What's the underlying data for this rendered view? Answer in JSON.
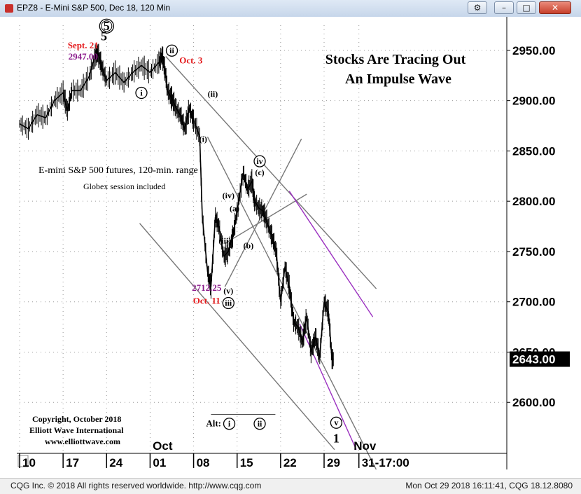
{
  "window": {
    "title": "EPZ8 - E-Mini S&P 500, Dec 18, 120 Min",
    "buttons": [
      "tools-icon",
      "minimize-icon",
      "maximize-icon",
      "close-icon"
    ]
  },
  "status_bar": {
    "left": "CQG Inc. © 2018 All rights reserved worldwide. http://www.cqg.com",
    "right": "Mon Oct 29 2018 16:11:41, CQG 18.12.8080"
  },
  "chart_data": {
    "type": "line",
    "style": "price bars",
    "title": "Stocks Are Tracing Out",
    "subtitle": "An Impulse Wave",
    "note_line1": "E-mini S&P 500 futures, 120-min. range",
    "note_line2": "Globex session included",
    "copyright": [
      "Copyright, October 2018",
      "Elliott Wave International",
      "www.elliottwave.com"
    ],
    "ylim": [
      2550,
      2975
    ],
    "yticks": [
      {
        "value": 2950,
        "label": "2950.00"
      },
      {
        "value": 2900,
        "label": "2900.00"
      },
      {
        "value": 2850,
        "label": "2850.00"
      },
      {
        "value": 2800,
        "label": "2800.00"
      },
      {
        "value": 2750,
        "label": "2750.00"
      },
      {
        "value": 2700,
        "label": "2700.00"
      },
      {
        "value": 2650,
        "label": "2650.00"
      },
      {
        "value": 2600,
        "label": "2600.00"
      }
    ],
    "last_price": {
      "value": 2643,
      "label": "2643.00"
    },
    "xlim": [
      0,
      56
    ],
    "xticks": [
      {
        "x": 0,
        "label": "10"
      },
      {
        "x": 5,
        "label": "17"
      },
      {
        "x": 10,
        "label": "24"
      },
      {
        "x": 15,
        "label": "01"
      },
      {
        "x": 20,
        "label": "08"
      },
      {
        "x": 25,
        "label": "15"
      },
      {
        "x": 30,
        "label": "22"
      },
      {
        "x": 35,
        "label": "29"
      },
      {
        "x": 39,
        "label": "31-17:00"
      }
    ],
    "month_labels": [
      {
        "x": 15.3,
        "label": "Oct"
      },
      {
        "x": 38.4,
        "label": "Nov"
      }
    ],
    "series": [
      {
        "color": "#000000",
        "x": [
          0,
          1,
          2,
          3,
          4,
          5,
          5.5,
          6,
          7,
          8,
          8.7,
          9,
          9.5,
          10,
          11,
          12,
          13,
          14,
          15,
          16,
          16.4,
          16.8,
          17,
          17.5,
          18,
          18.5,
          19,
          19.5,
          20,
          20.7,
          21,
          21.6,
          22,
          22.5,
          22.9,
          23.5,
          24,
          24.5,
          25,
          25.7,
          26.2,
          26.7,
          27,
          27.5,
          28,
          28.5,
          29,
          29.5,
          30,
          30.5,
          31,
          31.5,
          32,
          32.5,
          33,
          33.5,
          34,
          34.5,
          35,
          35.5,
          35.9,
          36.1
        ],
        "values": [
          2877,
          2872,
          2886,
          2883,
          2900,
          2908,
          2890,
          2910,
          2910,
          2924,
          2945,
          2947,
          2932,
          2920,
          2928,
          2918,
          2928,
          2935,
          2928,
          2938,
          2945,
          2925,
          2910,
          2902,
          2892,
          2885,
          2872,
          2892,
          2880,
          2864,
          2785,
          2730,
          2715,
          2784,
          2775,
          2745,
          2750,
          2765,
          2790,
          2828,
          2812,
          2820,
          2800,
          2793,
          2790,
          2778,
          2765,
          2750,
          2700,
          2735,
          2715,
          2680,
          2675,
          2660,
          2685,
          2650,
          2665,
          2645,
          2700,
          2690,
          2643,
          2643
        ]
      }
    ],
    "annotations": [
      {
        "text": "5",
        "x": 9.7,
        "y": 2960,
        "color": "#000000"
      },
      {
        "text": "Sept. 21",
        "x": 7.3,
        "y": 2952,
        "color": "#e41a1c"
      },
      {
        "text": "2947.00",
        "x": 7.3,
        "y": 2941,
        "color": "#8b1a8b"
      },
      {
        "text": "Oct. 3",
        "x": 19.7,
        "y": 2937,
        "color": "#e41a1c"
      },
      {
        "text": "2712.25",
        "x": 21.5,
        "y": 2711,
        "color": "#8b1a8b"
      },
      {
        "text": "Oct. 11",
        "x": 21.5,
        "y": 2698,
        "color": "#e41a1c"
      },
      {
        "text": "Alt:",
        "x": 22.3,
        "y": 2576,
        "color": "#000000"
      },
      {
        "text": "1",
        "x": 36.4,
        "y": 2560,
        "color": "#000000"
      }
    ],
    "wave_labels": [
      {
        "text": "5",
        "x": 10,
        "y": 2970,
        "circled": true,
        "double": true
      },
      {
        "text": "ii",
        "x": 17.5,
        "y": 2947,
        "circled": true
      },
      {
        "text": "i",
        "x": 14,
        "y": 2905,
        "circled": true
      },
      {
        "text": "(ii)",
        "x": 22.2,
        "y": 2904
      },
      {
        "text": "(i)",
        "x": 21.1,
        "y": 2859
      },
      {
        "text": "iv",
        "x": 27.6,
        "y": 2837,
        "circled": true
      },
      {
        "text": "(c)",
        "x": 27.6,
        "y": 2826
      },
      {
        "text": "(iv)",
        "x": 24,
        "y": 2803
      },
      {
        "text": "(a)",
        "x": 24.7,
        "y": 2790
      },
      {
        "text": "(iii)",
        "x": 23.6,
        "y": 2758
      },
      {
        "text": "(b)",
        "x": 26.3,
        "y": 2753
      },
      {
        "text": "(v)",
        "x": 24,
        "y": 2708
      },
      {
        "text": "iii",
        "x": 24,
        "y": 2696,
        "circled": true
      },
      {
        "text": "i",
        "x": 24.1,
        "y": 2576,
        "circled": true
      },
      {
        "text": "ii",
        "x": 27.6,
        "y": 2576,
        "circled": true
      },
      {
        "text": "v",
        "x": 36.4,
        "y": 2577,
        "circled": true
      }
    ]
  }
}
